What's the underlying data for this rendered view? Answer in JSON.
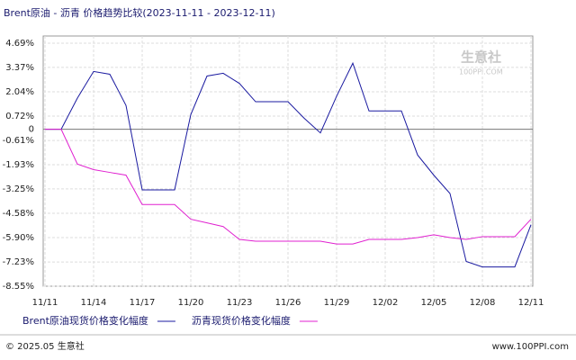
{
  "chart_data": {
    "type": "line",
    "title": "Brent原油 - 沥青 价格趋势比较(2023-11-11 - 2023-12-11)",
    "categories": [
      "11/11",
      null,
      null,
      "11/14",
      null,
      null,
      "11/17",
      null,
      null,
      "11/20",
      null,
      null,
      "11/23",
      null,
      null,
      "11/26",
      null,
      null,
      "11/29",
      null,
      null,
      "12/02",
      null,
      null,
      "12/05",
      null,
      null,
      "12/08",
      null,
      null,
      "12/11"
    ],
    "series": [
      {
        "name": "Brent原油现货价格变化幅度",
        "color": "#1a1aa0",
        "values": [
          0,
          0,
          1.7,
          3.15,
          3.0,
          1.3,
          -3.3,
          -3.3,
          -3.3,
          0.8,
          2.9,
          3.05,
          2.5,
          1.5,
          1.5,
          1.5,
          0.6,
          -0.2,
          1.8,
          3.6,
          1.0,
          1.0,
          1.0,
          -1.4,
          -2.5,
          -3.5,
          -7.2,
          -7.5,
          -7.5,
          -7.5,
          -5.2
        ]
      },
      {
        "name": "沥青现货价格变化幅度",
        "color": "#e020d0",
        "values": [
          0,
          0,
          -1.9,
          -2.2,
          -2.35,
          -2.5,
          -4.1,
          -4.1,
          -4.1,
          -4.9,
          -5.1,
          -5.3,
          -6.0,
          -6.1,
          -6.1,
          -6.1,
          -6.1,
          -6.1,
          -6.25,
          -6.25,
          -6.0,
          -6.0,
          -6.0,
          -5.9,
          -5.75,
          -5.9,
          -6.0,
          -5.85,
          -5.85,
          -5.85,
          -4.9
        ]
      }
    ],
    "ylim": [
      -8.55,
      4.69
    ],
    "yticks": [
      {
        "value": 4.69,
        "label": "4.69%"
      },
      {
        "value": 3.37,
        "label": "3.37%"
      },
      {
        "value": 2.04,
        "label": "2.04%"
      },
      {
        "value": 0.72,
        "label": "0.72%"
      },
      0,
      {
        "value": -0.61,
        "label": "-0.61%"
      },
      {
        "value": -1.93,
        "label": "-1.93%"
      },
      {
        "value": -3.25,
        "label": "-3.25%"
      },
      {
        "value": -4.58,
        "label": "-4.58%"
      },
      {
        "value": -5.9,
        "label": "-5.90%"
      },
      {
        "value": -7.23,
        "label": "-7.23%"
      },
      {
        "value": -8.55,
        "label": "-8.55%"
      }
    ],
    "grid": true,
    "watermark": {
      "name": "生意社",
      "site": "100PPI.COM"
    },
    "footer": {
      "copyright": "© 2025.05 生意社",
      "site": "www.100PPI.com"
    }
  }
}
